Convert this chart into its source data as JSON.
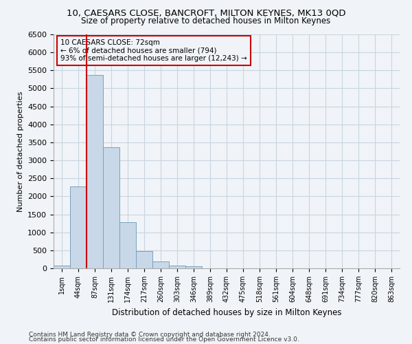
{
  "title": "10, CAESARS CLOSE, BANCROFT, MILTON KEYNES, MK13 0QD",
  "subtitle": "Size of property relative to detached houses in Milton Keynes",
  "xlabel": "Distribution of detached houses by size in Milton Keynes",
  "ylabel": "Number of detached properties",
  "footer_line1": "Contains HM Land Registry data © Crown copyright and database right 2024.",
  "footer_line2": "Contains public sector information licensed under the Open Government Licence v3.0.",
  "bar_labels": [
    "1sqm",
    "44sqm",
    "87sqm",
    "131sqm",
    "174sqm",
    "217sqm",
    "260sqm",
    "303sqm",
    "346sqm",
    "389sqm",
    "432sqm",
    "475sqm",
    "518sqm",
    "561sqm",
    "604sqm",
    "648sqm",
    "691sqm",
    "734sqm",
    "777sqm",
    "820sqm",
    "863sqm"
  ],
  "bar_values": [
    70,
    2280,
    5380,
    3360,
    1290,
    480,
    185,
    75,
    55,
    0,
    0,
    0,
    0,
    0,
    0,
    0,
    0,
    0,
    0,
    0,
    0
  ],
  "bar_color": "#c8d8e8",
  "bar_edgecolor": "#7aa0bb",
  "ylim": [
    0,
    6500
  ],
  "yticks": [
    0,
    500,
    1000,
    1500,
    2000,
    2500,
    3000,
    3500,
    4000,
    4500,
    5000,
    5500,
    6000,
    6500
  ],
  "red_line_x": 2.0,
  "annotation_title": "10 CAESARS CLOSE: 72sqm",
  "annotation_line1": "← 6% of detached houses are smaller (794)",
  "annotation_line2": "93% of semi-detached houses are larger (12,243) →",
  "red_line_color": "#cc0000",
  "annotation_box_edgecolor": "#cc0000",
  "grid_color": "#c8d4de",
  "background_color": "#f0f4f8"
}
